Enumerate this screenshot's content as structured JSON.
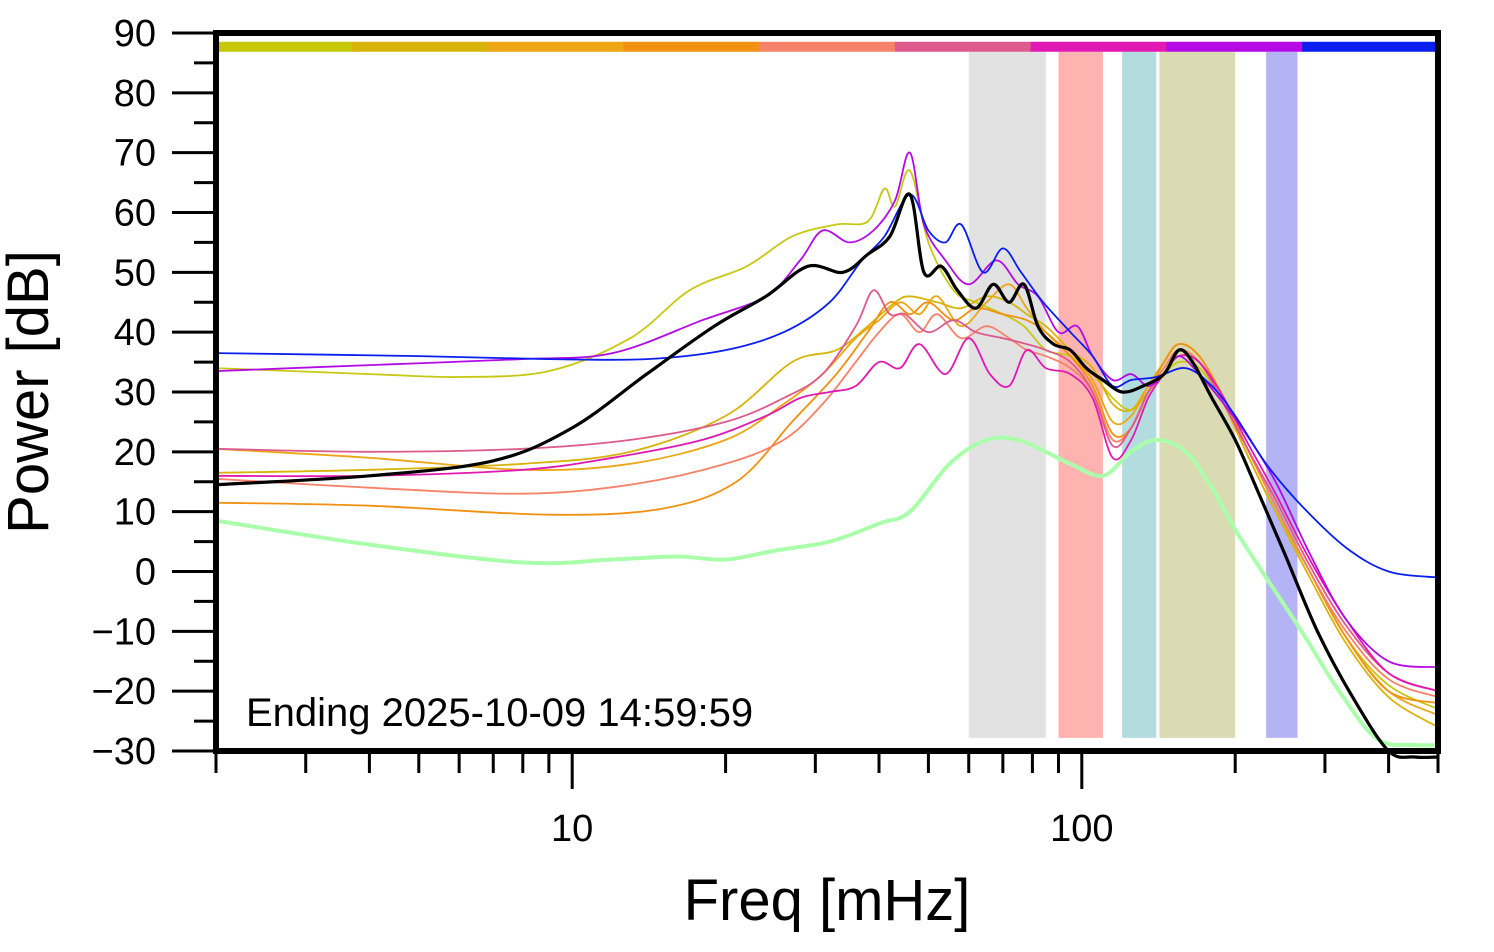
{
  "chart_data": {
    "type": "line",
    "title": "",
    "xlabel": "Freq [mHz]",
    "ylabel": "Power [dB]",
    "x_scale": "log",
    "xlim": [
      2.0,
      500
    ],
    "ylim": [
      -30,
      90
    ],
    "grid": false,
    "annotation": "Ending 2025-10-09 14:59:59",
    "x_tick_labels": [
      {
        "value": 10,
        "label": "10"
      },
      {
        "value": 100,
        "label": "100"
      }
    ],
    "y_tick_labels": [
      {
        "value": 90,
        "label": "90"
      },
      {
        "value": 80,
        "label": "80"
      },
      {
        "value": 70,
        "label": "70"
      },
      {
        "value": 60,
        "label": "60"
      },
      {
        "value": 50,
        "label": "50"
      },
      {
        "value": 40,
        "label": "40"
      },
      {
        "value": 30,
        "label": "30"
      },
      {
        "value": 20,
        "label": "20"
      },
      {
        "value": 10,
        "label": "10"
      },
      {
        "value": 0,
        "label": "0"
      },
      {
        "value": -10,
        "label": "−10"
      },
      {
        "value": -20,
        "label": "−20"
      },
      {
        "value": -30,
        "label": "−30"
      }
    ],
    "time_color_bar": {
      "y_value": 87.7,
      "colors": [
        "#c8c80a",
        "#d8b40a",
        "#eda614",
        "#f29012",
        "#f7826a",
        "#de5a8c",
        "#e118b4",
        "#b40ae6",
        "#0a1ef0"
      ]
    },
    "bands": [
      {
        "x0": 60,
        "x1": 85,
        "color": "#e2e2e2"
      },
      {
        "x0": 90,
        "x1": 110,
        "color": "#ffb3b0"
      },
      {
        "x0": 120,
        "x1": 140,
        "color": "#b3dcdf"
      },
      {
        "x0": 142,
        "x1": 200,
        "color": "#dadab3"
      },
      {
        "x0": 230,
        "x1": 265,
        "color": "#b3b3f5"
      }
    ],
    "series": [
      {
        "color": "#c8c814",
        "width": 1.8,
        "x": [
          2.0,
          4,
          6,
          9,
          13,
          17,
          22,
          27,
          33,
          38,
          41,
          43,
          46,
          50,
          56,
          62,
          70,
          77,
          85,
          95,
          105,
          115,
          125,
          135,
          145,
          155,
          170,
          190,
          210,
          240,
          280,
          330,
          400,
          500
        ],
        "y": [
          34,
          33,
          32.5,
          33.5,
          39,
          47,
          51,
          56,
          58,
          58.5,
          64,
          61,
          67,
          55,
          47,
          45,
          43,
          41,
          37,
          36,
          33,
          29,
          27,
          30,
          33,
          35,
          34,
          28,
          20,
          10,
          0,
          -11,
          -19,
          -23
        ]
      },
      {
        "color": "#d8b40a",
        "width": 1.8,
        "x": [
          2.0,
          4,
          8,
          13,
          20,
          27,
          33,
          38,
          43,
          46,
          52,
          58,
          65,
          72,
          78,
          85,
          95,
          105,
          115,
          125,
          135,
          145,
          155,
          170,
          190,
          210,
          240,
          280,
          330,
          400,
          500
        ],
        "y": [
          16.5,
          17,
          18,
          20,
          26,
          35,
          37,
          41,
          45,
          46,
          45,
          44,
          46,
          45,
          43,
          41,
          37,
          34,
          28,
          27,
          31,
          34,
          37,
          35,
          28,
          20,
          10,
          -1,
          -12,
          -21,
          -26
        ]
      },
      {
        "color": "#eda614",
        "width": 1.8,
        "x": [
          2.0,
          4,
          8,
          13,
          20,
          26,
          31,
          36,
          40,
          44,
          48,
          52,
          58,
          65,
          72,
          78,
          85,
          95,
          105,
          115,
          125,
          135,
          145,
          155,
          170,
          190,
          210,
          240,
          280,
          330,
          400,
          500
        ],
        "y": [
          20.5,
          19,
          17,
          18,
          22,
          28,
          33,
          39,
          42,
          45,
          43,
          46,
          41,
          45,
          48,
          44,
          40,
          36,
          32,
          25,
          26,
          31,
          35,
          38,
          36,
          29,
          21,
          11,
          0,
          -11,
          -20,
          -24
        ]
      },
      {
        "color": "#f29012",
        "width": 1.8,
        "x": [
          2.0,
          4,
          9,
          15,
          21,
          27,
          33,
          38,
          42,
          46,
          50,
          56,
          62,
          70,
          78,
          85,
          95,
          105,
          115,
          125,
          135,
          145,
          155,
          170,
          190,
          210,
          240,
          280,
          330,
          400,
          500
        ],
        "y": [
          11.5,
          11,
          9.5,
          10.5,
          15,
          25,
          33,
          40,
          45,
          43,
          45,
          42,
          44,
          43,
          42,
          40,
          36,
          31,
          23,
          24,
          30,
          35,
          38,
          36,
          29,
          21,
          11,
          0,
          -11,
          -20,
          -22
        ]
      },
      {
        "color": "#f7826a",
        "width": 1.8,
        "x": [
          2.0,
          4,
          8,
          13,
          20,
          26,
          31,
          36,
          40,
          44,
          48,
          52,
          58,
          65,
          72,
          78,
          85,
          95,
          105,
          115,
          125,
          135,
          145,
          155,
          170,
          190,
          210,
          240,
          280,
          330,
          400,
          500
        ],
        "y": [
          15.5,
          14,
          13,
          14.5,
          18,
          22,
          28,
          35,
          40,
          43,
          40,
          43,
          39,
          41,
          39,
          37,
          36,
          34,
          30,
          22,
          24,
          30,
          34,
          37,
          35,
          28,
          21,
          11,
          0,
          -10,
          -18,
          -21
        ]
      },
      {
        "color": "#de5a8c",
        "width": 1.8,
        "x": [
          2.0,
          4,
          8,
          13,
          20,
          26,
          31,
          36,
          39,
          42,
          45,
          50,
          56,
          62,
          70,
          78,
          85,
          95,
          105,
          115,
          125,
          135,
          145,
          155,
          170,
          190,
          210,
          240,
          280,
          330,
          400,
          500
        ],
        "y": [
          20.5,
          20,
          20.5,
          22,
          25,
          29,
          33,
          41,
          47,
          43,
          43,
          40,
          42,
          40,
          39,
          38,
          37,
          35,
          30,
          21,
          24,
          30,
          33,
          36,
          35,
          28,
          21,
          12,
          1,
          -9,
          -17,
          -20
        ]
      },
      {
        "color": "#e118b4",
        "width": 1.8,
        "x": [
          2.0,
          4,
          8,
          12,
          18,
          24,
          28,
          32,
          36,
          40,
          44,
          48,
          54,
          60,
          66,
          72,
          78,
          85,
          95,
          105,
          115,
          125,
          135,
          145,
          155,
          170,
          190,
          210,
          240,
          280,
          330,
          400,
          500
        ],
        "y": [
          16,
          16,
          17,
          19,
          22,
          26,
          29,
          30,
          31,
          35,
          34,
          38,
          33,
          39,
          33,
          31,
          37,
          34,
          33,
          29,
          19,
          22,
          29,
          33,
          36,
          35,
          29,
          22,
          13,
          2,
          -8,
          -17,
          -20
        ]
      },
      {
        "color": "#b40ae6",
        "width": 1.8,
        "x": [
          2.0,
          4,
          8,
          12,
          18,
          24,
          28,
          31,
          35,
          39,
          43,
          46,
          49,
          54,
          60,
          68,
          75,
          82,
          90,
          98,
          105,
          115,
          125,
          135,
          145,
          155,
          170,
          190,
          210,
          240,
          280,
          330,
          400,
          500
        ],
        "y": [
          33.5,
          34.5,
          35.5,
          36.5,
          42,
          46,
          52,
          57,
          55,
          57,
          62,
          70,
          58,
          52,
          48,
          52,
          48,
          46,
          40,
          41,
          36,
          32,
          33,
          31,
          33,
          36,
          33,
          28,
          23,
          15,
          3,
          -8,
          -15,
          -16
        ]
      },
      {
        "color": "#0a1ef0",
        "width": 1.8,
        "x": [
          2.0,
          5,
          9,
          14,
          20,
          26,
          32,
          37,
          41,
          46,
          50,
          54,
          58,
          64,
          70,
          76,
          84,
          95,
          105,
          115,
          125,
          140,
          160,
          180,
          200,
          230,
          270,
          330,
          400,
          500
        ],
        "y": [
          36.5,
          36,
          35.5,
          35.5,
          37,
          40,
          45,
          52,
          56,
          63,
          57,
          55,
          58,
          50,
          54,
          50,
          45,
          40,
          36,
          31,
          32,
          32.5,
          34,
          31,
          26,
          18,
          11,
          4,
          0,
          -1
        ]
      },
      {
        "color": "#aaffaa",
        "width": 4,
        "x": [
          2.0,
          4,
          8,
          12,
          16,
          20,
          25,
          32,
          40,
          46,
          55,
          65,
          75,
          85,
          95,
          110,
          125,
          140,
          160,
          180,
          200,
          230,
          270,
          320,
          380,
          450,
          500
        ],
        "y": [
          8.5,
          4.5,
          1.5,
          2.0,
          2.5,
          2.0,
          3.5,
          5,
          8,
          10,
          18,
          22,
          22,
          20,
          18,
          16,
          20,
          22,
          20,
          14,
          7,
          -1,
          -10,
          -20,
          -28,
          -29,
          -29
        ]
      },
      {
        "color": "#000000",
        "width": 3.2,
        "x": [
          2.0,
          4,
          7,
          10,
          14,
          19,
          24,
          29,
          34,
          38,
          42,
          46,
          49,
          53,
          57,
          62,
          67,
          72,
          77,
          82,
          88,
          95,
          102,
          110,
          120,
          132,
          145,
          155,
          165,
          180,
          200,
          220,
          250,
          290,
          340,
          400,
          450,
          500
        ],
        "y": [
          14.5,
          16,
          18.5,
          24,
          33,
          41,
          46,
          51,
          50,
          53,
          56,
          63,
          50,
          51,
          47,
          44,
          48,
          45,
          48,
          41,
          38,
          37,
          34,
          32,
          30,
          31,
          33,
          37,
          35,
          29,
          22,
          14,
          3,
          -10,
          -21,
          -30,
          -31,
          -31
        ]
      }
    ]
  }
}
